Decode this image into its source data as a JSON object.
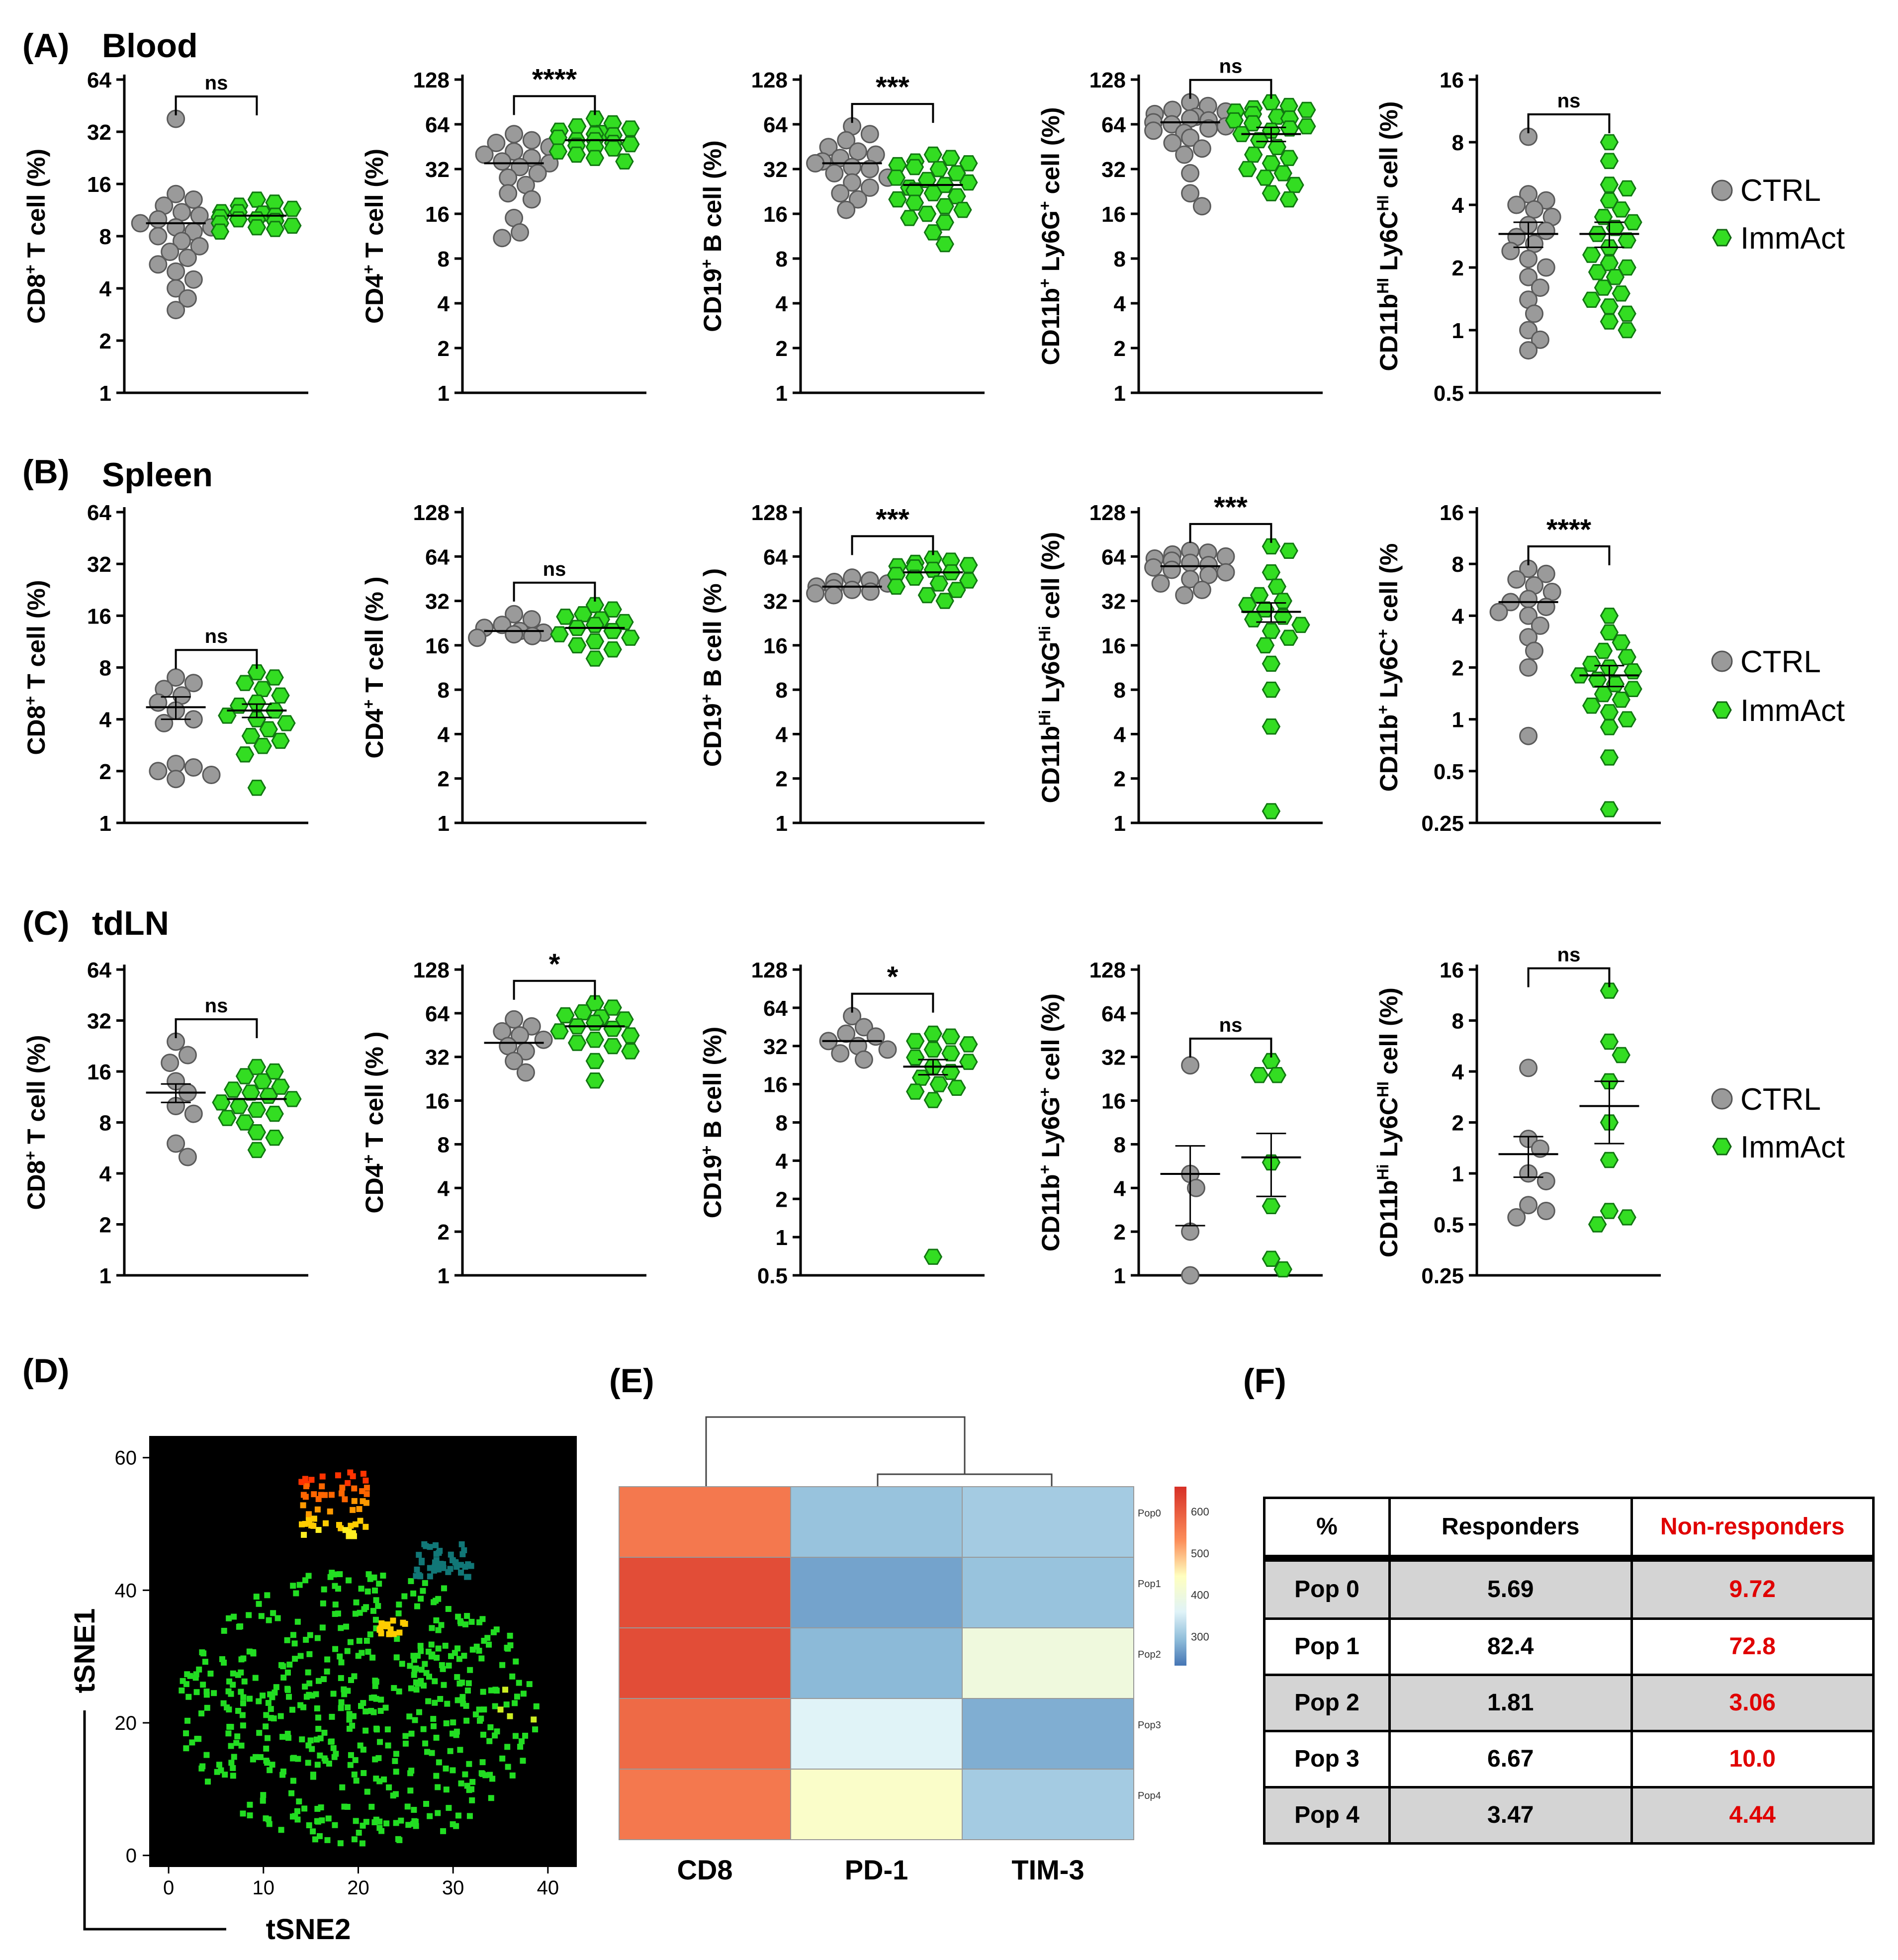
{
  "panel_letters": [
    "(A)",
    "(B)",
    "(C)",
    "(D)",
    "(E)",
    "(F)"
  ],
  "tissues": [
    "Blood",
    "Spleen",
    "tdLN"
  ],
  "legend": {
    "ctrl": "CTRL",
    "immact": "ImmAct"
  },
  "colors": {
    "ctrl": "#9a9a9a",
    "immact": "#33dd22",
    "tsne_bg": "#000000"
  },
  "chart_data": [
    {
      "type": "scatter",
      "panel": "A1",
      "ylabel_parts": [
        "CD8",
        "+",
        " T cell (%)"
      ],
      "ticks": [
        "1",
        "2",
        "4",
        "8",
        "16",
        "32",
        "64"
      ],
      "ylim": [
        1,
        64
      ],
      "sig": "ns",
      "ctrl": {
        "mean": 9.5,
        "sem": 0,
        "values": [
          38,
          14,
          13,
          12,
          11,
          10.5,
          10,
          9.5,
          9,
          9,
          8.5,
          8,
          7.5,
          7,
          6.5,
          6,
          5.5,
          5,
          4.5,
          4,
          3.5,
          3
        ]
      },
      "immact": {
        "mean": 10.5,
        "sem": 0,
        "values": [
          13,
          12.5,
          12,
          11.5,
          11,
          11,
          10.8,
          10.5,
          10.3,
          10,
          10,
          9.8,
          9.5,
          9.2,
          9,
          8.8,
          8.5
        ]
      }
    },
    {
      "type": "scatter",
      "panel": "A2",
      "ylabel_parts": [
        "CD4",
        "+",
        " T cell (%)"
      ],
      "ticks": [
        "1",
        "2",
        "4",
        "8",
        "16",
        "32",
        "64",
        "128"
      ],
      "ylim": [
        1,
        128
      ],
      "sig": "****",
      "ctrl": {
        "mean": 35,
        "sem": 0,
        "values": [
          55,
          50,
          48,
          45,
          42,
          40,
          38,
          36,
          35,
          33,
          30,
          28,
          25,
          22,
          20,
          15,
          12,
          11
        ]
      },
      "immact": {
        "mean": 50,
        "sem": 0,
        "values": [
          70,
          65,
          62,
          60,
          58,
          56,
          55,
          54,
          52,
          50,
          50,
          48,
          47,
          46,
          45,
          44,
          42,
          40,
          38,
          36
        ]
      }
    },
    {
      "type": "scatter",
      "panel": "A3",
      "ylabel_parts": [
        "CD19",
        "+",
        " B cell (%)"
      ],
      "ticks": [
        "1",
        "2",
        "4",
        "8",
        "16",
        "32",
        "64",
        "128"
      ],
      "ylim": [
        1,
        128
      ],
      "sig": "***",
      "ctrl": {
        "mean": 35,
        "sem": 0,
        "values": [
          62,
          55,
          50,
          45,
          42,
          40,
          38,
          36,
          35,
          33,
          32,
          30,
          28,
          26,
          24,
          22,
          20,
          17
        ]
      },
      "immact": {
        "mean": 25,
        "sem": 0,
        "values": [
          40,
          38,
          36,
          35,
          34,
          33,
          32,
          30,
          28,
          27,
          26,
          25,
          24,
          23,
          22,
          21,
          20,
          19,
          18,
          17,
          16,
          15,
          14,
          12,
          10
        ]
      }
    },
    {
      "type": "scatter",
      "panel": "A4",
      "ylabel_parts": [
        "CD11b",
        "+",
        " Ly6G",
        "+",
        " cell (%)"
      ],
      "ticks": [
        "1",
        "2",
        "4",
        "8",
        "16",
        "32",
        "64",
        "128"
      ],
      "ylim": [
        1,
        128
      ],
      "sig": "ns",
      "ctrl": {
        "mean": 66,
        "sem": 0,
        "values": [
          90,
          85,
          80,
          78,
          75,
          72,
          70,
          68,
          66,
          64,
          62,
          60,
          58,
          56,
          52,
          48,
          44,
          40,
          30,
          22,
          18
        ]
      },
      "immact": {
        "mean": 55,
        "sem": 6,
        "values": [
          90,
          85,
          82,
          80,
          78,
          75,
          72,
          70,
          68,
          65,
          62,
          60,
          58,
          55,
          50,
          45,
          40,
          38,
          35,
          32,
          30,
          28,
          25,
          22,
          20
        ]
      }
    },
    {
      "type": "scatter",
      "panel": "A5",
      "ylabel_parts": [
        "CD11b",
        "HI",
        " Ly6C",
        "HI",
        " cell (%)"
      ],
      "ticks": [
        "0.5",
        "1",
        "2",
        "4",
        "8",
        "16"
      ],
      "ylim": [
        0.5,
        16
      ],
      "sig": "ns",
      "ctrl": {
        "mean": 2.9,
        "sem": 0.4,
        "values": [
          8.5,
          4.5,
          4.2,
          4,
          3.8,
          3.5,
          3.2,
          3,
          2.8,
          2.6,
          2.4,
          2.2,
          2,
          1.8,
          1.6,
          1.4,
          1.2,
          1,
          0.9,
          0.8
        ]
      },
      "immact": {
        "mean": 2.9,
        "sem": 0.4,
        "values": [
          8,
          6.5,
          5,
          4.8,
          4.2,
          3.8,
          3.5,
          3.3,
          3.1,
          2.9,
          2.7,
          2.5,
          2.3,
          2.1,
          2,
          1.9,
          1.8,
          1.6,
          1.5,
          1.4,
          1.3,
          1.2,
          1.1,
          1
        ]
      }
    },
    {
      "type": "scatter",
      "panel": "B1",
      "ylabel_parts": [
        "CD8",
        "+",
        " T cell (%)"
      ],
      "ticks": [
        "1",
        "2",
        "4",
        "8",
        "16",
        "32",
        "64"
      ],
      "ylim": [
        1,
        64
      ],
      "sig": "ns",
      "ctrl": {
        "mean": 4.7,
        "sem": 0.7,
        "values": [
          7,
          6.5,
          6,
          5.5,
          5,
          4.5,
          4,
          3.8,
          2.2,
          2.1,
          2,
          1.9,
          1.8
        ]
      },
      "immact": {
        "mean": 4.5,
        "sem": 0.4,
        "values": [
          7.5,
          7,
          6.5,
          6,
          5.5,
          5,
          4.8,
          4.5,
          4.2,
          4,
          3.8,
          3.5,
          3.2,
          3,
          2.8,
          2.5,
          1.6
        ]
      }
    },
    {
      "type": "scatter",
      "panel": "B2",
      "ylabel_parts": [
        "CD4",
        "+",
        " T cell (% )"
      ],
      "ticks": [
        "1",
        "2",
        "4",
        "8",
        "16",
        "32",
        "64",
        "128"
      ],
      "ylim": [
        1,
        128
      ],
      "sig": "ns",
      "ctrl": {
        "mean": 20,
        "sem": 0,
        "values": [
          26,
          24,
          22,
          21,
          20,
          19.5,
          19,
          18.5,
          18
        ]
      },
      "immact": {
        "mean": 21,
        "sem": 0,
        "values": [
          30,
          28,
          26,
          25,
          24,
          23,
          22,
          21,
          20,
          19,
          18,
          17,
          16,
          15,
          13
        ]
      }
    },
    {
      "type": "scatter",
      "panel": "B3",
      "ylabel_parts": [
        "CD19",
        "+",
        " B cell (% )"
      ],
      "ticks": [
        "1",
        "2",
        "4",
        "8",
        "16",
        "32",
        "64",
        "128"
      ],
      "ylim": [
        1,
        128
      ],
      "sig": "***",
      "ctrl": {
        "mean": 40,
        "sem": 0,
        "values": [
          46,
          44,
          43,
          42,
          40,
          39,
          38,
          37,
          36,
          35
        ]
      },
      "immact": {
        "mean": 50,
        "sem": 0,
        "values": [
          62,
          60,
          58,
          56,
          55,
          54,
          52,
          50,
          48,
          46,
          44,
          42,
          40,
          38,
          35,
          32
        ]
      }
    },
    {
      "type": "scatter",
      "panel": "B4",
      "ylabel_parts": [
        "CD11b",
        "Hi",
        " Ly6G",
        "Hi",
        " cell (%)"
      ],
      "ticks": [
        "1",
        "2",
        "4",
        "8",
        "16",
        "32",
        "64",
        "128"
      ],
      "ylim": [
        1,
        128
      ],
      "sig": "***",
      "ctrl": {
        "mean": 55,
        "sem": 0,
        "values": [
          70,
          68,
          66,
          64,
          62,
          60,
          58,
          56,
          54,
          52,
          50,
          48,
          45,
          42,
          38,
          35
        ]
      },
      "immact": {
        "mean": 27,
        "sem": 4,
        "values": [
          75,
          70,
          50,
          40,
          35,
          32,
          30,
          28,
          25,
          24,
          22,
          20,
          18,
          16,
          12,
          8,
          4.5,
          1.2
        ]
      }
    },
    {
      "type": "scatter",
      "panel": "B5",
      "ylabel_parts": [
        "CD11b",
        "+",
        " Ly6C",
        "+",
        " cell (%"
      ],
      "ticks": [
        "0.25",
        "0.5",
        "1",
        "2",
        "4",
        "8",
        "16"
      ],
      "ylim": [
        0.25,
        16
      ],
      "sig": "****",
      "ctrl": {
        "mean": 4.8,
        "sem": 0,
        "values": [
          7.5,
          7,
          6.5,
          6,
          5.5,
          5,
          4.8,
          4.5,
          4.2,
          4,
          3.5,
          3,
          2.5,
          2,
          0.8
        ]
      },
      "immact": {
        "mean": 1.8,
        "sem": 0.25,
        "values": [
          4,
          3.2,
          2.8,
          2.5,
          2.3,
          2.1,
          2,
          1.9,
          1.8,
          1.7,
          1.6,
          1.5,
          1.4,
          1.3,
          1.2,
          1.1,
          1,
          0.9,
          0.6,
          0.3
        ]
      }
    },
    {
      "type": "scatter",
      "panel": "C1",
      "ylabel_parts": [
        "CD8",
        "+",
        " T cell (%)"
      ],
      "ticks": [
        "1",
        "2",
        "4",
        "8",
        "16",
        "32",
        "64"
      ],
      "ylim": [
        1,
        64
      ],
      "sig": "ns",
      "ctrl": {
        "mean": 12,
        "sem": 1.5,
        "values": [
          24,
          20,
          18,
          14,
          12,
          10,
          9,
          6,
          5
        ]
      },
      "immact": {
        "mean": 11,
        "sem": 0,
        "values": [
          17,
          16,
          15,
          14,
          13,
          12.5,
          12,
          11.5,
          11,
          10.5,
          10,
          9.5,
          9,
          8.5,
          8,
          7,
          6.5,
          5.5
        ]
      }
    },
    {
      "type": "scatter",
      "panel": "C2",
      "ylabel_parts": [
        "CD4",
        "+",
        " T cell (% )"
      ],
      "ticks": [
        "1",
        "2",
        "4",
        "8",
        "16",
        "32",
        "64",
        "128"
      ],
      "ylim": [
        1,
        128
      ],
      "sig": "*",
      "ctrl": {
        "mean": 40,
        "sem": 0,
        "values": [
          58,
          52,
          48,
          45,
          42,
          38,
          35,
          30,
          25
        ]
      },
      "immact": {
        "mean": 52,
        "sem": 0,
        "values": [
          75,
          70,
          65,
          62,
          60,
          58,
          55,
          52,
          50,
          48,
          45,
          42,
          40,
          38,
          35,
          30,
          22
        ]
      }
    },
    {
      "type": "scatter",
      "panel": "C3",
      "ylabel_parts": [
        "CD19",
        "+",
        " B cell (%)"
      ],
      "ticks": [
        "0.5",
        "1",
        "2",
        "4",
        "8",
        "16",
        "32",
        "64",
        "128"
      ],
      "ylim": [
        0.5,
        128
      ],
      "sig": "*",
      "ctrl": {
        "mean": 35,
        "sem": 0,
        "values": [
          55,
          45,
          40,
          38,
          35,
          32,
          30,
          28,
          25
        ]
      },
      "immact": {
        "mean": 22,
        "sem": 3,
        "values": [
          40,
          38,
          35,
          33,
          30,
          28,
          26,
          24,
          22,
          20,
          18,
          16,
          15,
          14,
          12,
          0.7
        ]
      }
    },
    {
      "type": "scatter",
      "panel": "C4",
      "ylabel_parts": [
        "CD11b",
        "+",
        " Ly6G",
        "+",
        " cell (%)"
      ],
      "ticks": [
        "1",
        "2",
        "4",
        "8",
        "16",
        "32",
        "64",
        "128"
      ],
      "ylim": [
        1,
        128
      ],
      "sig": "ns",
      "ctrl": {
        "mean": 5,
        "sem": 2.8,
        "values": [
          28,
          5,
          4,
          2,
          1
        ]
      },
      "immact": {
        "mean": 6.5,
        "sem": 3,
        "values": [
          30,
          24,
          24,
          6,
          3,
          1.3,
          1.1
        ]
      }
    },
    {
      "type": "scatter",
      "panel": "C5",
      "ylabel_parts": [
        "CD11b",
        "Hi",
        " Ly6C",
        "HI",
        " cell (%)"
      ],
      "ticks": [
        "0.25",
        "0.5",
        "1",
        "2",
        "4",
        "8",
        "16"
      ],
      "ylim": [
        0.25,
        16
      ],
      "sig": "ns",
      "ctrl": {
        "mean": 1.3,
        "sem": 0.35,
        "values": [
          4.2,
          1.6,
          1.4,
          1,
          0.9,
          0.65,
          0.6,
          0.55
        ]
      },
      "immact": {
        "mean": 2.5,
        "sem": 1,
        "values": [
          12,
          6,
          5,
          3.5,
          2,
          1.2,
          0.6,
          0.55,
          0.5
        ]
      }
    },
    {
      "type": "scatter",
      "panel": "D",
      "xlabel": "tSNE2",
      "ylabel": "tSNE1",
      "x_ticks": [
        "0",
        "10",
        "20",
        "30",
        "40"
      ],
      "y_ticks": [
        "0",
        "20",
        "40",
        "60"
      ],
      "xlim": [
        -1,
        42
      ],
      "ylim": [
        -1,
        62
      ]
    },
    {
      "type": "heatmap",
      "panel": "E",
      "columns": [
        "CD8",
        "PD-1",
        "TIM-3"
      ],
      "rows": [
        "Pop0",
        "Pop1",
        "Pop2",
        "Pop3",
        "Pop4"
      ],
      "values": [
        [
          560,
          300,
          310
        ],
        [
          620,
          270,
          300
        ],
        [
          620,
          290,
          400
        ],
        [
          580,
          360,
          280
        ],
        [
          560,
          430,
          310
        ]
      ],
      "colorbar_ticks": [
        "600",
        "500",
        "400",
        "300"
      ],
      "crange": [
        230,
        660
      ]
    },
    {
      "type": "table",
      "panel": "F",
      "headers": [
        "%",
        "Responders",
        "Non-responders"
      ],
      "rows": [
        [
          "Pop 0",
          "5.69",
          "9.72"
        ],
        [
          "Pop 1",
          "82.4",
          "72.8"
        ],
        [
          "Pop 2",
          "1.81",
          "3.06"
        ],
        [
          "Pop 3",
          "6.67",
          "10.0"
        ],
        [
          "Pop 4",
          "3.47",
          "4.44"
        ]
      ]
    }
  ]
}
